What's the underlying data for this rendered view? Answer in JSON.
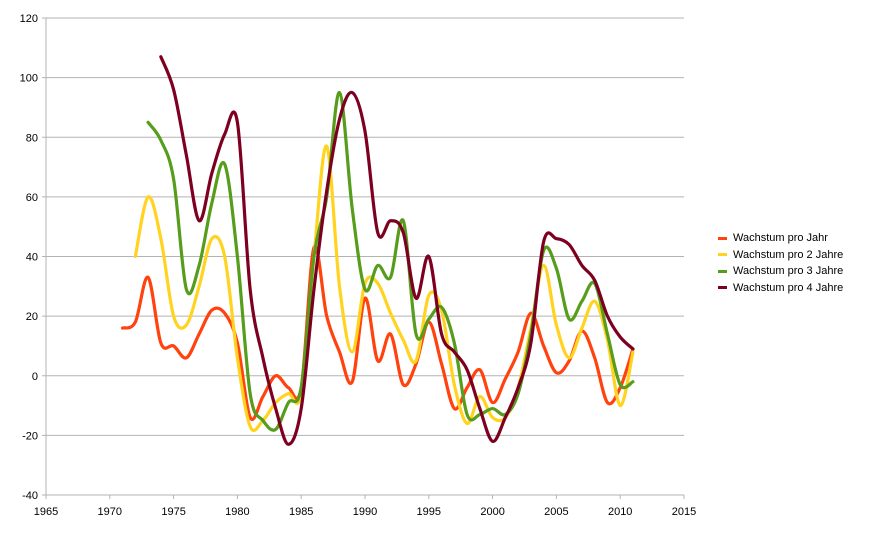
{
  "chart_data": {
    "type": "line",
    "title": "",
    "xlabel": "",
    "ylabel": "",
    "xlim": [
      1965,
      2015
    ],
    "ylim": [
      -40,
      120
    ],
    "x_ticks": [
      1965,
      1970,
      1975,
      1980,
      1985,
      1990,
      1995,
      2000,
      2005,
      2010,
      2015
    ],
    "y_ticks": [
      -40,
      -20,
      0,
      20,
      40,
      60,
      80,
      100,
      120
    ],
    "grid": "horizontal",
    "legend_position": "right",
    "series": [
      {
        "name": "Wachstum pro Jahr",
        "color": "#FF420E",
        "x": [
          1971,
          1972,
          1973,
          1974,
          1975,
          1976,
          1977,
          1978,
          1979,
          1980,
          1981,
          1982,
          1983,
          1984,
          1985,
          1986,
          1987,
          1988,
          1989,
          1990,
          1991,
          1992,
          1993,
          1994,
          1995,
          1996,
          1997,
          1998,
          1999,
          2000,
          2001,
          2002,
          2003,
          2004,
          2005,
          2006,
          2007,
          2008,
          2009,
          2010,
          2011
        ],
        "y": [
          16,
          18,
          33,
          11,
          10,
          6,
          14,
          22,
          21,
          11,
          -14,
          -7,
          0,
          -4,
          -4,
          43,
          20,
          8,
          -2,
          26,
          5,
          14,
          -3,
          4,
          18,
          4,
          -11,
          -4,
          2,
          -9,
          -1,
          8,
          21,
          10,
          1,
          5,
          15,
          6,
          -9,
          -4,
          9
        ]
      },
      {
        "name": "Wachstum pro 2 Jahre",
        "color": "#FFD320",
        "x": [
          1972,
          1973,
          1974,
          1975,
          1976,
          1977,
          1978,
          1979,
          1980,
          1981,
          1982,
          1983,
          1984,
          1985,
          1986,
          1987,
          1988,
          1989,
          1990,
          1991,
          1992,
          1993,
          1994,
          1995,
          1996,
          1997,
          1998,
          1999,
          2000,
          2001,
          2002,
          2003,
          2004,
          2005,
          2006,
          2007,
          2008,
          2009,
          2010,
          2011
        ],
        "y": [
          40,
          60,
          46,
          20,
          17,
          30,
          46,
          40,
          6,
          -17,
          -15,
          -9,
          -6,
          -6,
          40,
          77,
          30,
          8,
          31,
          31,
          21,
          12,
          5,
          27,
          22,
          -3,
          -16,
          -7,
          -14,
          -14,
          -4,
          16,
          37,
          17,
          6,
          16,
          25,
          12,
          -10,
          8
        ]
      },
      {
        "name": "Wachstum pro 3 Jahre",
        "color": "#579D1C",
        "x": [
          1973,
          1974,
          1975,
          1976,
          1977,
          1978,
          1979,
          1980,
          1981,
          1982,
          1983,
          1984,
          1985,
          1986,
          1987,
          1988,
          1989,
          1990,
          1991,
          1992,
          1993,
          1994,
          1995,
          1996,
          1997,
          1998,
          1999,
          2000,
          2001,
          2002,
          2003,
          2004,
          2005,
          2006,
          2007,
          2008,
          2009,
          2010,
          2011
        ],
        "y": [
          85,
          79,
          66,
          29,
          37,
          58,
          71,
          40,
          -6,
          -15,
          -18,
          -9,
          -4,
          40,
          60,
          95,
          56,
          29,
          37,
          33,
          52,
          14,
          19,
          23,
          11,
          -13,
          -13,
          -11,
          -13,
          -6,
          14,
          42,
          36,
          19,
          25,
          31,
          14,
          -3,
          -2
        ]
      },
      {
        "name": "Wachstum pro 4 Jahre",
        "color": "#7E0021",
        "x": [
          1974,
          1975,
          1976,
          1977,
          1978,
          1979,
          1980,
          1981,
          1982,
          1983,
          1984,
          1985,
          1986,
          1987,
          1988,
          1989,
          1990,
          1991,
          1992,
          1993,
          1994,
          1995,
          1996,
          1997,
          1998,
          1999,
          2000,
          2001,
          2002,
          2003,
          2004,
          2005,
          2006,
          2007,
          2008,
          2009,
          2010,
          2011
        ],
        "y": [
          107,
          96,
          74,
          52,
          68,
          81,
          85,
          29,
          6,
          -11,
          -23,
          -11,
          29,
          62,
          86,
          95,
          82,
          48,
          52,
          48,
          26,
          40,
          14,
          8,
          2,
          -11,
          -22,
          -14,
          -4,
          11,
          45,
          46,
          44,
          37,
          32,
          20,
          13,
          9
        ]
      }
    ]
  }
}
